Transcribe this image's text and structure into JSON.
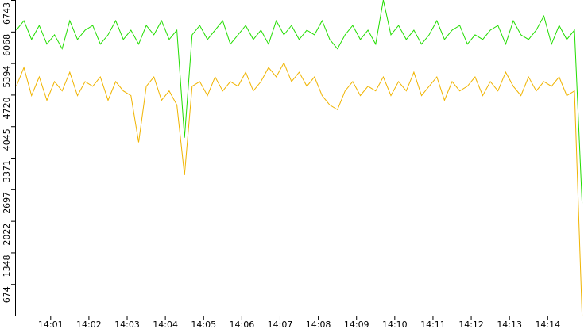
{
  "chart_data": {
    "type": "line",
    "x": [
      0.1,
      0.3,
      0.5,
      0.7,
      0.9,
      1.1,
      1.3,
      1.5,
      1.7,
      1.9,
      2.1,
      2.3,
      2.5,
      2.7,
      2.9,
      3.1,
      3.3,
      3.5,
      3.7,
      3.9,
      4.1,
      4.3,
      4.5,
      4.7,
      4.9,
      5.1,
      5.3,
      5.5,
      5.7,
      5.9,
      6.1,
      6.3,
      6.5,
      6.7,
      6.9,
      7.1,
      7.3,
      7.5,
      7.7,
      7.9,
      8.1,
      8.3,
      8.5,
      8.7,
      8.9,
      9.1,
      9.3,
      9.5,
      9.7,
      9.9,
      10.1,
      10.3,
      10.5,
      10.7,
      10.9,
      11.1,
      11.3,
      11.5,
      11.7,
      11.9,
      12.1,
      12.3,
      12.5,
      12.7,
      12.9,
      13.1,
      13.3,
      13.5,
      13.7,
      13.9,
      14.1,
      14.3,
      14.5,
      14.7,
      14.9
    ],
    "xlim": [
      0.09,
      14.95
    ],
    "xticks": [
      {
        "value": 1,
        "label": "14:01"
      },
      {
        "value": 2,
        "label": "14:02"
      },
      {
        "value": 3,
        "label": "14:03"
      },
      {
        "value": 4,
        "label": "14:04"
      },
      {
        "value": 5,
        "label": "14:05"
      },
      {
        "value": 6,
        "label": "14:06"
      },
      {
        "value": 7,
        "label": "14:07"
      },
      {
        "value": 8,
        "label": "14:08"
      },
      {
        "value": 9,
        "label": "14:09"
      },
      {
        "value": 10,
        "label": "14:10"
      },
      {
        "value": 11,
        "label": "14:11"
      },
      {
        "value": 12,
        "label": "14:12"
      },
      {
        "value": 13,
        "label": "14:13"
      },
      {
        "value": 14,
        "label": "14:14"
      }
    ],
    "ylim": [
      0,
      6743
    ],
    "yticks": [
      674,
      1348,
      2022,
      2697,
      3371,
      4045,
      4720,
      5394,
      6068,
      6743
    ],
    "series": [
      {
        "color": "#22dd00",
        "values": [
          6100,
          6300,
          5900,
          6200,
          5800,
          6000,
          5700,
          6300,
          5900,
          6100,
          6200,
          5800,
          6000,
          6300,
          5900,
          6100,
          5800,
          6200,
          6000,
          6300,
          5900,
          6100,
          3800,
          6000,
          6200,
          5900,
          6100,
          6300,
          5800,
          6000,
          6200,
          5900,
          6100,
          5800,
          6300,
          6000,
          6200,
          5900,
          6100,
          6000,
          6300,
          5900,
          5700,
          6000,
          6200,
          5900,
          6100,
          5800,
          6743,
          6000,
          6200,
          5900,
          6100,
          5800,
          6000,
          6300,
          5900,
          6100,
          6200,
          5800,
          6000,
          5900,
          6100,
          6200,
          5800,
          6300,
          6000,
          5900,
          6100,
          6400,
          5800,
          6200,
          5900,
          6100,
          2400
        ]
      },
      {
        "color": "#f0b400",
        "values": [
          4900,
          5300,
          4700,
          5100,
          4600,
          5000,
          4800,
          5200,
          4700,
          5000,
          4900,
          5100,
          4600,
          5000,
          4800,
          4700,
          3700,
          4900,
          5100,
          4600,
          4800,
          4500,
          3000,
          4900,
          5000,
          4700,
          5100,
          4800,
          5000,
          4900,
          5200,
          4800,
          5000,
          5300,
          5100,
          5400,
          5000,
          5200,
          4900,
          5100,
          4700,
          4500,
          4400,
          4800,
          5000,
          4700,
          4900,
          4800,
          5100,
          4700,
          5000,
          4800,
          5200,
          4700,
          4900,
          5100,
          4600,
          5000,
          4800,
          4900,
          5100,
          4700,
          5000,
          4800,
          5200,
          4900,
          4700,
          5100,
          4800,
          5000,
          4900,
          5100,
          4700,
          4800,
          0
        ]
      }
    ]
  }
}
